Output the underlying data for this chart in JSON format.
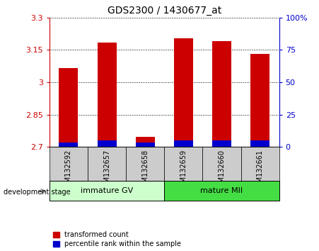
{
  "title": "GDS2300 / 1430677_at",
  "samples": [
    "GSM132592",
    "GSM132657",
    "GSM132658",
    "GSM132659",
    "GSM132660",
    "GSM132661"
  ],
  "red_values": [
    3.065,
    3.185,
    2.745,
    3.205,
    3.19,
    3.13
  ],
  "blue_values": [
    2.715,
    2.725,
    2.715,
    2.725,
    2.725,
    2.725
  ],
  "ylim_left": [
    2.7,
    3.3
  ],
  "yticks_left": [
    2.7,
    2.85,
    3.0,
    3.15,
    3.3
  ],
  "ytick_labels_left": [
    "2.7",
    "2.85",
    "3",
    "3.15",
    "3.3"
  ],
  "ylim_right": [
    0,
    100
  ],
  "yticks_right": [
    0,
    25,
    50,
    75,
    100
  ],
  "ytick_labels_right": [
    "0",
    "25",
    "50",
    "75",
    "100%"
  ],
  "group_label_immature": "immature GV",
  "group_label_mature": "mature MII",
  "group_label": "development stage",
  "legend_red": "transformed count",
  "legend_blue": "percentile rank within the sample",
  "bar_color_red": "#cc0000",
  "bar_color_blue": "#0000cc",
  "bar_width": 0.5,
  "base_value": 2.7,
  "bg_plot": "#ffffff",
  "bg_xtick": "#cccccc",
  "bg_group_immature": "#ccffcc",
  "bg_group_mature": "#44dd44",
  "left_color": "#cc0000",
  "right_color": "#0000cc",
  "title_fontsize": 10,
  "tick_fontsize": 8,
  "label_fontsize": 7,
  "group_fontsize": 8
}
